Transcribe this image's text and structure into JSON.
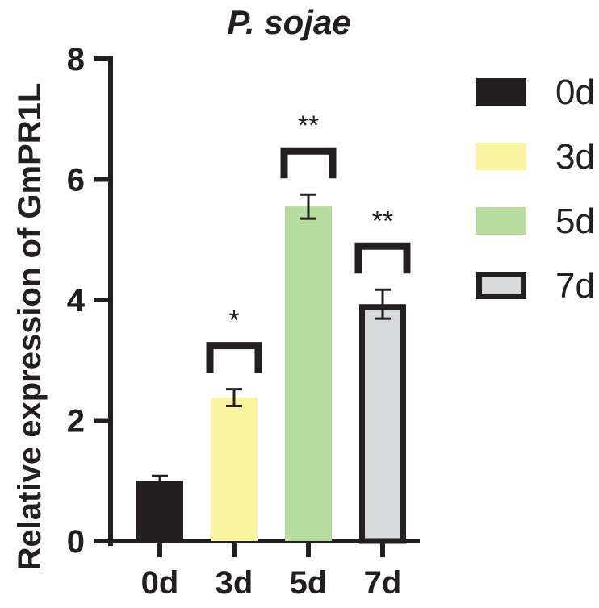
{
  "chart_data": {
    "type": "bar",
    "title": "P. sojae",
    "xlabel": "",
    "ylabel": "Relative expression of GmPR1L",
    "categories": [
      "0d",
      "3d",
      "5d",
      "7d"
    ],
    "values": [
      1.0,
      2.38,
      5.55,
      3.93
    ],
    "errors": [
      0.08,
      0.14,
      0.2,
      0.24
    ],
    "significance": [
      "",
      "*",
      "**",
      "**"
    ],
    "ylim": [
      0,
      8
    ],
    "yticks": [
      0,
      2,
      4,
      6,
      8
    ],
    "colors": [
      "#231f20",
      "#f8f4a2",
      "#b6dc9e",
      "#d8d9db"
    ],
    "legend": {
      "position": "right",
      "items": [
        {
          "label": "0d",
          "color": "#231f20"
        },
        {
          "label": "3d",
          "color": "#f8f4a2"
        },
        {
          "label": "5d",
          "color": "#b6dc9e"
        },
        {
          "label": "7d",
          "color": "#d8d9db"
        }
      ]
    }
  }
}
